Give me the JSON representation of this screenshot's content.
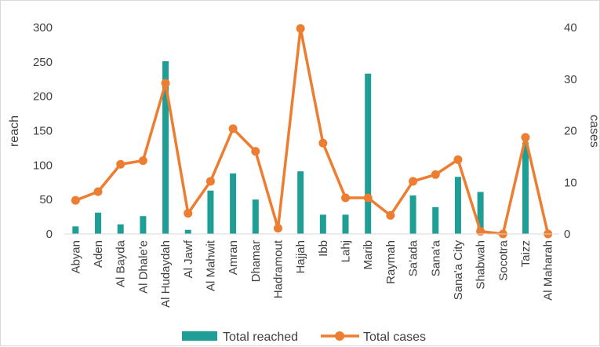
{
  "chart_data": {
    "type": "bar+line",
    "categories": [
      "Abyan",
      "Aden",
      "Al Bayda",
      "Al Dhale'e",
      "Al Hudaydah",
      "Al Jawf",
      "Al Mahwit",
      "Amran",
      "Dhamar",
      "Hadramout",
      "Hajjah",
      "Ibb",
      "Lahj",
      "Marib",
      "Raymah",
      "Sa'ada",
      "Sana'a",
      "Sana'a City",
      "Shabwah",
      "Socotra",
      "Taizz",
      "Al Maharah"
    ],
    "series": [
      {
        "name": "Total reached",
        "type": "bar",
        "axis": "left",
        "color": "#1f9e96",
        "values": [
          11,
          31,
          14,
          26,
          251,
          6,
          63,
          88,
          50,
          0,
          91,
          28,
          28,
          233,
          0,
          56,
          39,
          83,
          61,
          0,
          133,
          0
        ]
      },
      {
        "name": "Total cases",
        "type": "line",
        "axis": "right",
        "color": "#ed7d31",
        "values": [
          6.5,
          8.2,
          13.5,
          14.2,
          29.2,
          4.0,
          10.2,
          20.4,
          16.0,
          1.1,
          39.8,
          17.6,
          7.0,
          7.0,
          3.6,
          10.2,
          11.5,
          14.4,
          0.5,
          0.0,
          18.7,
          0.0
        ]
      }
    ],
    "ylabel_left": "reach",
    "ylabel_right": "cases",
    "ylim_left": [
      0,
      300
    ],
    "ylim_right": [
      0,
      40
    ],
    "yticks_left": [
      "0",
      "50",
      "100",
      "150",
      "200",
      "250",
      "300"
    ],
    "yticks_right": [
      "0",
      "10",
      "20",
      "30",
      "40"
    ],
    "grid": false,
    "legend_position": "bottom"
  }
}
